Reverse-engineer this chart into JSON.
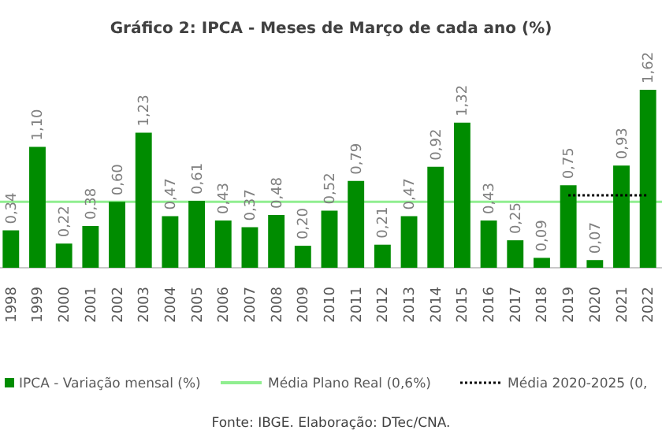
{
  "chart_data": {
    "type": "bar",
    "title": "Gráfico 2: IPCA - Meses de Março de cada ano (%)",
    "categories": [
      "1998",
      "1999",
      "2000",
      "2001",
      "2002",
      "2003",
      "2004",
      "2005",
      "2006",
      "2007",
      "2008",
      "2009",
      "2010",
      "2011",
      "2012",
      "2013",
      "2014",
      "2015",
      "2016",
      "2017",
      "2018",
      "2019",
      "2020",
      "2021",
      "2022"
    ],
    "series": [
      {
        "name": "IPCA - Variação mensal (%)",
        "color": "#008c00",
        "values": [
          0.34,
          1.1,
          0.22,
          0.38,
          0.6,
          1.23,
          0.47,
          0.61,
          0.43,
          0.37,
          0.48,
          0.2,
          0.52,
          0.79,
          0.21,
          0.47,
          0.92,
          1.32,
          0.43,
          0.25,
          0.09,
          0.75,
          0.07,
          0.93,
          1.62
        ],
        "value_labels": [
          "0,34",
          "1,10",
          "0,22",
          "0,38",
          "0,60",
          "1,23",
          "0,47",
          "0,61",
          "0,43",
          "0,37",
          "0,48",
          "0,20",
          "0,52",
          "0,79",
          "0,21",
          "0,47",
          "0,92",
          "1,32",
          "0,43",
          "0,25",
          "0,09",
          "0,75",
          "0,07",
          "0,93",
          "1,62"
        ]
      },
      {
        "name": "Média 2020-2025 (0,",
        "type": "line",
        "color": "#000000",
        "line_style": "dotted",
        "values": [
          null,
          null,
          null,
          null,
          null,
          null,
          null,
          null,
          null,
          null,
          null,
          null,
          null,
          null,
          null,
          null,
          null,
          null,
          null,
          null,
          null,
          0.66,
          0.66,
          0.66,
          0.66
        ]
      }
    ],
    "ref_lines": [
      {
        "axis": "y",
        "value": 0.6,
        "label": "Média Plano Real (0,6%)",
        "color": "#90ee90",
        "line_style": "solid"
      }
    ],
    "legend": "bottom",
    "annotations": [
      "Fonte: IBGE. Elaboração: DTec/CNA."
    ]
  }
}
